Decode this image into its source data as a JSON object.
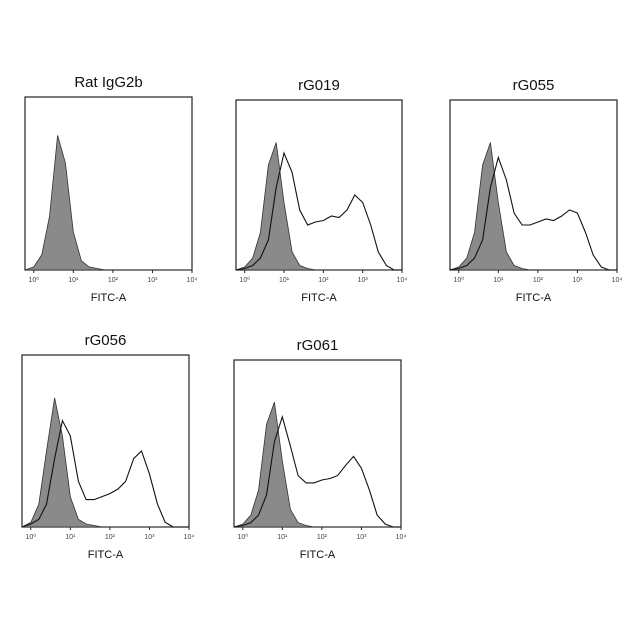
{
  "chart_data": [
    {
      "type": "area",
      "title": "Rat IgG2b",
      "x_label": "FITC-A",
      "log_x": true,
      "x": [
        0.6,
        1,
        1.6,
        2.5,
        4,
        6.3,
        10,
        16,
        25,
        40,
        63,
        100,
        160,
        250,
        400,
        630,
        1000,
        1600,
        2500,
        4000,
        6300,
        10000
      ],
      "xlim": [
        0.6,
        10000
      ],
      "ylim": [
        0,
        100
      ],
      "xticks": [
        {
          "value": 1,
          "label": "10⁰"
        },
        {
          "value": 10,
          "label": "10¹"
        },
        {
          "value": 100,
          "label": "10²"
        },
        {
          "value": 1000,
          "label": "10³"
        },
        {
          "value": 10000,
          "label": "10⁴"
        }
      ],
      "series": [
        {
          "color": "#333333",
          "fill": true,
          "values": [
            0,
            2,
            10,
            35,
            88,
            70,
            25,
            6,
            2,
            1,
            0,
            0,
            0,
            0,
            0,
            0,
            0,
            0,
            0,
            0,
            0,
            0
          ]
        }
      ]
    },
    {
      "type": "area",
      "title": "rG019",
      "x_label": "FITC-A",
      "log_x": true,
      "x": [
        0.6,
        1,
        1.6,
        2.5,
        4,
        6.3,
        10,
        16,
        25,
        40,
        63,
        100,
        160,
        250,
        400,
        630,
        1000,
        1600,
        2500,
        4000,
        6300,
        10000
      ],
      "xlim": [
        0.6,
        10000
      ],
      "ylim": [
        0,
        100
      ],
      "xticks": [
        {
          "value": 1,
          "label": "10⁰"
        },
        {
          "value": 10,
          "label": "10¹"
        },
        {
          "value": 100,
          "label": "10²"
        },
        {
          "value": 1000,
          "label": "10³"
        },
        {
          "value": 10000,
          "label": "10⁴"
        }
      ],
      "series": [
        {
          "color": "#333333",
          "fill": true,
          "values": [
            0,
            2,
            8,
            25,
            70,
            85,
            45,
            12,
            3,
            1,
            0,
            0,
            0,
            0,
            0,
            0,
            0,
            0,
            0,
            0,
            0,
            0
          ]
        },
        {
          "color": "#111111",
          "fill": false,
          "values": [
            0,
            1,
            3,
            8,
            20,
            55,
            78,
            65,
            40,
            30,
            32,
            33,
            36,
            35,
            40,
            50,
            45,
            30,
            12,
            3,
            0,
            0
          ]
        }
      ]
    },
    {
      "type": "area",
      "title": "rG055",
      "x_label": "FITC-A",
      "log_x": true,
      "x": [
        0.6,
        1,
        1.6,
        2.5,
        4,
        6.3,
        10,
        16,
        25,
        40,
        63,
        100,
        160,
        250,
        400,
        630,
        1000,
        1600,
        2500,
        4000,
        6300,
        10000
      ],
      "xlim": [
        0.6,
        10000
      ],
      "ylim": [
        0,
        100
      ],
      "xticks": [
        {
          "value": 1,
          "label": "10⁰"
        },
        {
          "value": 10,
          "label": "10¹"
        },
        {
          "value": 100,
          "label": "10²"
        },
        {
          "value": 1000,
          "label": "10³"
        },
        {
          "value": 10000,
          "label": "10⁴"
        }
      ],
      "series": [
        {
          "color": "#333333",
          "fill": true,
          "values": [
            0,
            2,
            8,
            25,
            70,
            85,
            45,
            12,
            3,
            1,
            0,
            0,
            0,
            0,
            0,
            0,
            0,
            0,
            0,
            0,
            0,
            0
          ]
        },
        {
          "color": "#111111",
          "fill": false,
          "values": [
            0,
            1,
            3,
            8,
            20,
            55,
            75,
            60,
            38,
            30,
            30,
            32,
            34,
            33,
            36,
            40,
            38,
            25,
            10,
            2,
            0,
            0
          ]
        }
      ]
    },
    {
      "type": "area",
      "title": "rG056",
      "x_label": "FITC-A",
      "log_x": true,
      "x": [
        0.6,
        1,
        1.6,
        2.5,
        4,
        6.3,
        10,
        16,
        25,
        40,
        63,
        100,
        160,
        250,
        400,
        630,
        1000,
        1600,
        2500,
        4000,
        6300,
        10000
      ],
      "xlim": [
        0.6,
        10000
      ],
      "ylim": [
        0,
        100
      ],
      "xticks": [
        {
          "value": 1,
          "label": "10⁰"
        },
        {
          "value": 10,
          "label": "10¹"
        },
        {
          "value": 100,
          "label": "10²"
        },
        {
          "value": 1000,
          "label": "10³"
        },
        {
          "value": 10000,
          "label": "10⁴"
        }
      ],
      "series": [
        {
          "color": "#333333",
          "fill": true,
          "values": [
            0,
            3,
            15,
            50,
            85,
            60,
            20,
            5,
            2,
            1,
            0,
            0,
            0,
            0,
            0,
            0,
            0,
            0,
            0,
            0,
            0,
            0
          ]
        },
        {
          "color": "#111111",
          "fill": false,
          "values": [
            0,
            2,
            5,
            15,
            45,
            70,
            60,
            30,
            18,
            18,
            20,
            22,
            25,
            30,
            45,
            50,
            35,
            15,
            3,
            0,
            0,
            0
          ]
        }
      ]
    },
    {
      "type": "area",
      "title": "rG061",
      "x_label": "FITC-A",
      "log_x": true,
      "x": [
        0.6,
        1,
        1.6,
        2.5,
        4,
        6.3,
        10,
        16,
        25,
        40,
        63,
        100,
        160,
        250,
        400,
        630,
        1000,
        1600,
        2500,
        4000,
        6300,
        10000
      ],
      "xlim": [
        0.6,
        10000
      ],
      "ylim": [
        0,
        100
      ],
      "xticks": [
        {
          "value": 1,
          "label": "10⁰"
        },
        {
          "value": 10,
          "label": "10¹"
        },
        {
          "value": 100,
          "label": "10²"
        },
        {
          "value": 1000,
          "label": "10³"
        },
        {
          "value": 10000,
          "label": "10⁴"
        }
      ],
      "series": [
        {
          "color": "#333333",
          "fill": true,
          "values": [
            0,
            2,
            8,
            25,
            70,
            85,
            45,
            12,
            3,
            1,
            0,
            0,
            0,
            0,
            0,
            0,
            0,
            0,
            0,
            0,
            0,
            0
          ]
        },
        {
          "color": "#111111",
          "fill": false,
          "values": [
            0,
            1,
            3,
            8,
            22,
            58,
            75,
            55,
            35,
            30,
            30,
            32,
            33,
            35,
            42,
            48,
            40,
            25,
            8,
            2,
            0,
            0
          ]
        }
      ]
    }
  ]
}
